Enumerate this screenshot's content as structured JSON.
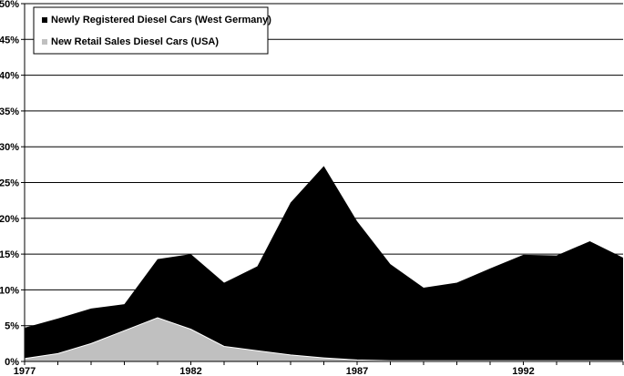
{
  "chart_data": {
    "type": "area",
    "x": [
      1977,
      1978,
      1979,
      1980,
      1981,
      1982,
      1983,
      1984,
      1985,
      1986,
      1987,
      1988,
      1989,
      1990,
      1991,
      1992,
      1993,
      1994,
      1995
    ],
    "series": [
      {
        "name": "Newly Registered Diesel Cars (West Germany)",
        "color": "#000000",
        "values": [
          4.7,
          6.0,
          7.4,
          8.0,
          14.3,
          15.0,
          11.0,
          13.3,
          22.2,
          27.3,
          19.6,
          13.6,
          10.3,
          11.0,
          13.0,
          14.9,
          14.8,
          16.8,
          14.5
        ]
      },
      {
        "name": "New Retail Sales Diesel Cars (USA)",
        "color": "#c0c0c0",
        "values": [
          0.4,
          1.1,
          2.5,
          4.3,
          6.1,
          4.5,
          2.1,
          1.5,
          0.9,
          0.5,
          0.2,
          0.1,
          0.1,
          0.1,
          0.1,
          0.1,
          0.1,
          0.1,
          0.1
        ]
      }
    ],
    "x_ticks": [
      "1977",
      "1982",
      "1987",
      "1992"
    ],
    "y_ticks": [
      "0%",
      "5%",
      "10%",
      "15%",
      "20%",
      "25%",
      "30%",
      "35%",
      "40%",
      "45%",
      "50%"
    ],
    "ylim": [
      0,
      50
    ],
    "xlim": [
      1977,
      1995
    ],
    "grid": true,
    "legend_position": "top-left"
  }
}
